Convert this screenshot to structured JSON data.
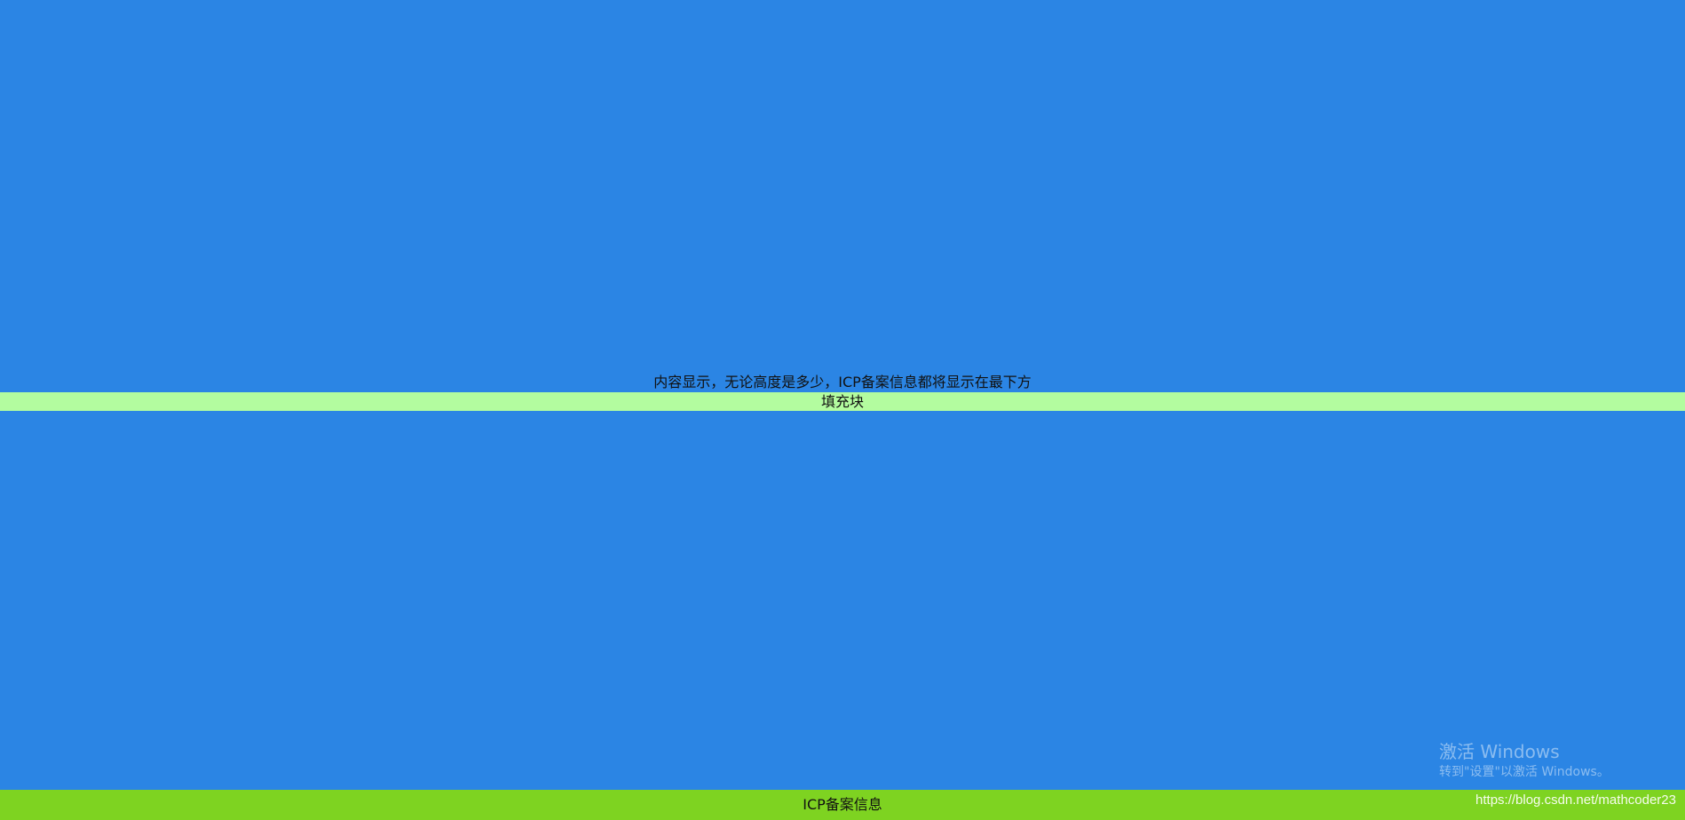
{
  "main": {
    "content_text": "内容显示，无论高度是多少，ICP备案信息都将显示在最下方",
    "filler_label": "填充块"
  },
  "footer": {
    "icp_text": "ICP备案信息"
  },
  "overlay": {
    "activate_title": "激活 Windows",
    "activate_subtitle": "转到\"设置\"以激活 Windows。",
    "watermark_url": "https://blog.csdn.net/mathcoder23"
  },
  "colors": {
    "page_background": "#2b85e4",
    "filler_background": "#b3fc9f",
    "footer_background": "#7ed321"
  }
}
